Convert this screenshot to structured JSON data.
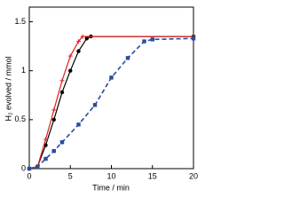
{
  "chart_data": {
    "type": "line",
    "xlabel": "Time / min",
    "ylabel": "H₂ evolved / mmol",
    "xlim": [
      0,
      20
    ],
    "xticks": [
      0,
      5,
      10,
      15,
      20
    ],
    "ylim": [
      0,
      1.65
    ],
    "yticks": [
      0,
      0.5,
      1,
      1.5
    ],
    "series": [
      {
        "color": "#000000",
        "marker": "circle",
        "dash": false,
        "x": [
          0,
          1,
          2,
          3,
          4,
          5,
          6,
          7,
          7.5,
          20
        ],
        "values": [
          0,
          0.02,
          0.24,
          0.5,
          0.78,
          1.0,
          1.2,
          1.33,
          1.35,
          1.35
        ]
      },
      {
        "color": "#e02020",
        "marker": "cross",
        "dash": false,
        "x": [
          0,
          1,
          2,
          3,
          4,
          5,
          6,
          6.5,
          20
        ],
        "values": [
          0,
          0.02,
          0.3,
          0.6,
          0.9,
          1.15,
          1.3,
          1.35,
          1.35
        ]
      },
      {
        "color": "#2a4aa0",
        "marker": "square",
        "dash": true,
        "x": [
          0,
          1,
          2,
          3,
          4,
          6,
          8,
          10,
          12,
          14,
          15,
          20
        ],
        "values": [
          0,
          0.02,
          0.1,
          0.18,
          0.27,
          0.45,
          0.65,
          0.93,
          1.13,
          1.3,
          1.32,
          1.33
        ]
      }
    ]
  }
}
